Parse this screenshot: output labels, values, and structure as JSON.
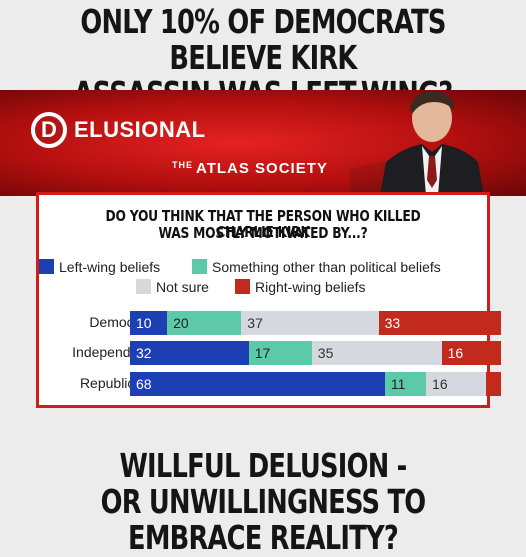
{
  "headline_top": [
    "ONLY 10% OF DEMOCRATS BELIEVE KIRK",
    "ASSASSIN WAS LEFT-WING?"
  ],
  "headline_bottom": [
    "WILLFUL DELUSION -",
    "OR UNWILLINGNESS TO EMBRACE REALITY?"
  ],
  "banner": {
    "logo_letter": "D",
    "logo_text": "ELUSIONAL",
    "society_prefix": "THE",
    "society_name": "ATLAS SOCIETY",
    "colors": {
      "red": "#c41818"
    }
  },
  "chart_data": {
    "type": "bar",
    "stacked": true,
    "orientation": "horizontal",
    "title": [
      "DO YOU THINK THAT THE PERSON WHO KILLED CHARLIE KIRK",
      "WAS MOSTLY MOTIVATED BY...?"
    ],
    "categories": [
      "Democrats",
      "Independents",
      "Republicans"
    ],
    "legend_placement": "top",
    "series": [
      {
        "name": "Left-wing beliefs",
        "color": "#1c3fb3",
        "label_color": "#ffffff",
        "values": [
          10,
          32,
          68
        ],
        "labels": [
          "10",
          "32",
          "68"
        ]
      },
      {
        "name": "Something other than political beliefs",
        "color": "#5ccaa8",
        "label_color": "#222222",
        "values": [
          20,
          17,
          11
        ],
        "labels": [
          "20",
          "17",
          "11"
        ]
      },
      {
        "name": "Not sure",
        "color": "#d5d8de",
        "label_color": "#333333",
        "values": [
          37,
          35,
          16
        ],
        "labels": [
          "37",
          "35",
          "16"
        ]
      },
      {
        "name": "Right-wing beliefs",
        "color": "#c22a1e",
        "label_color": "#ffffff",
        "values": [
          33,
          16,
          4
        ],
        "labels": [
          "33",
          "16",
          ""
        ]
      }
    ],
    "xlim": [
      0,
      100
    ],
    "grid": false
  }
}
